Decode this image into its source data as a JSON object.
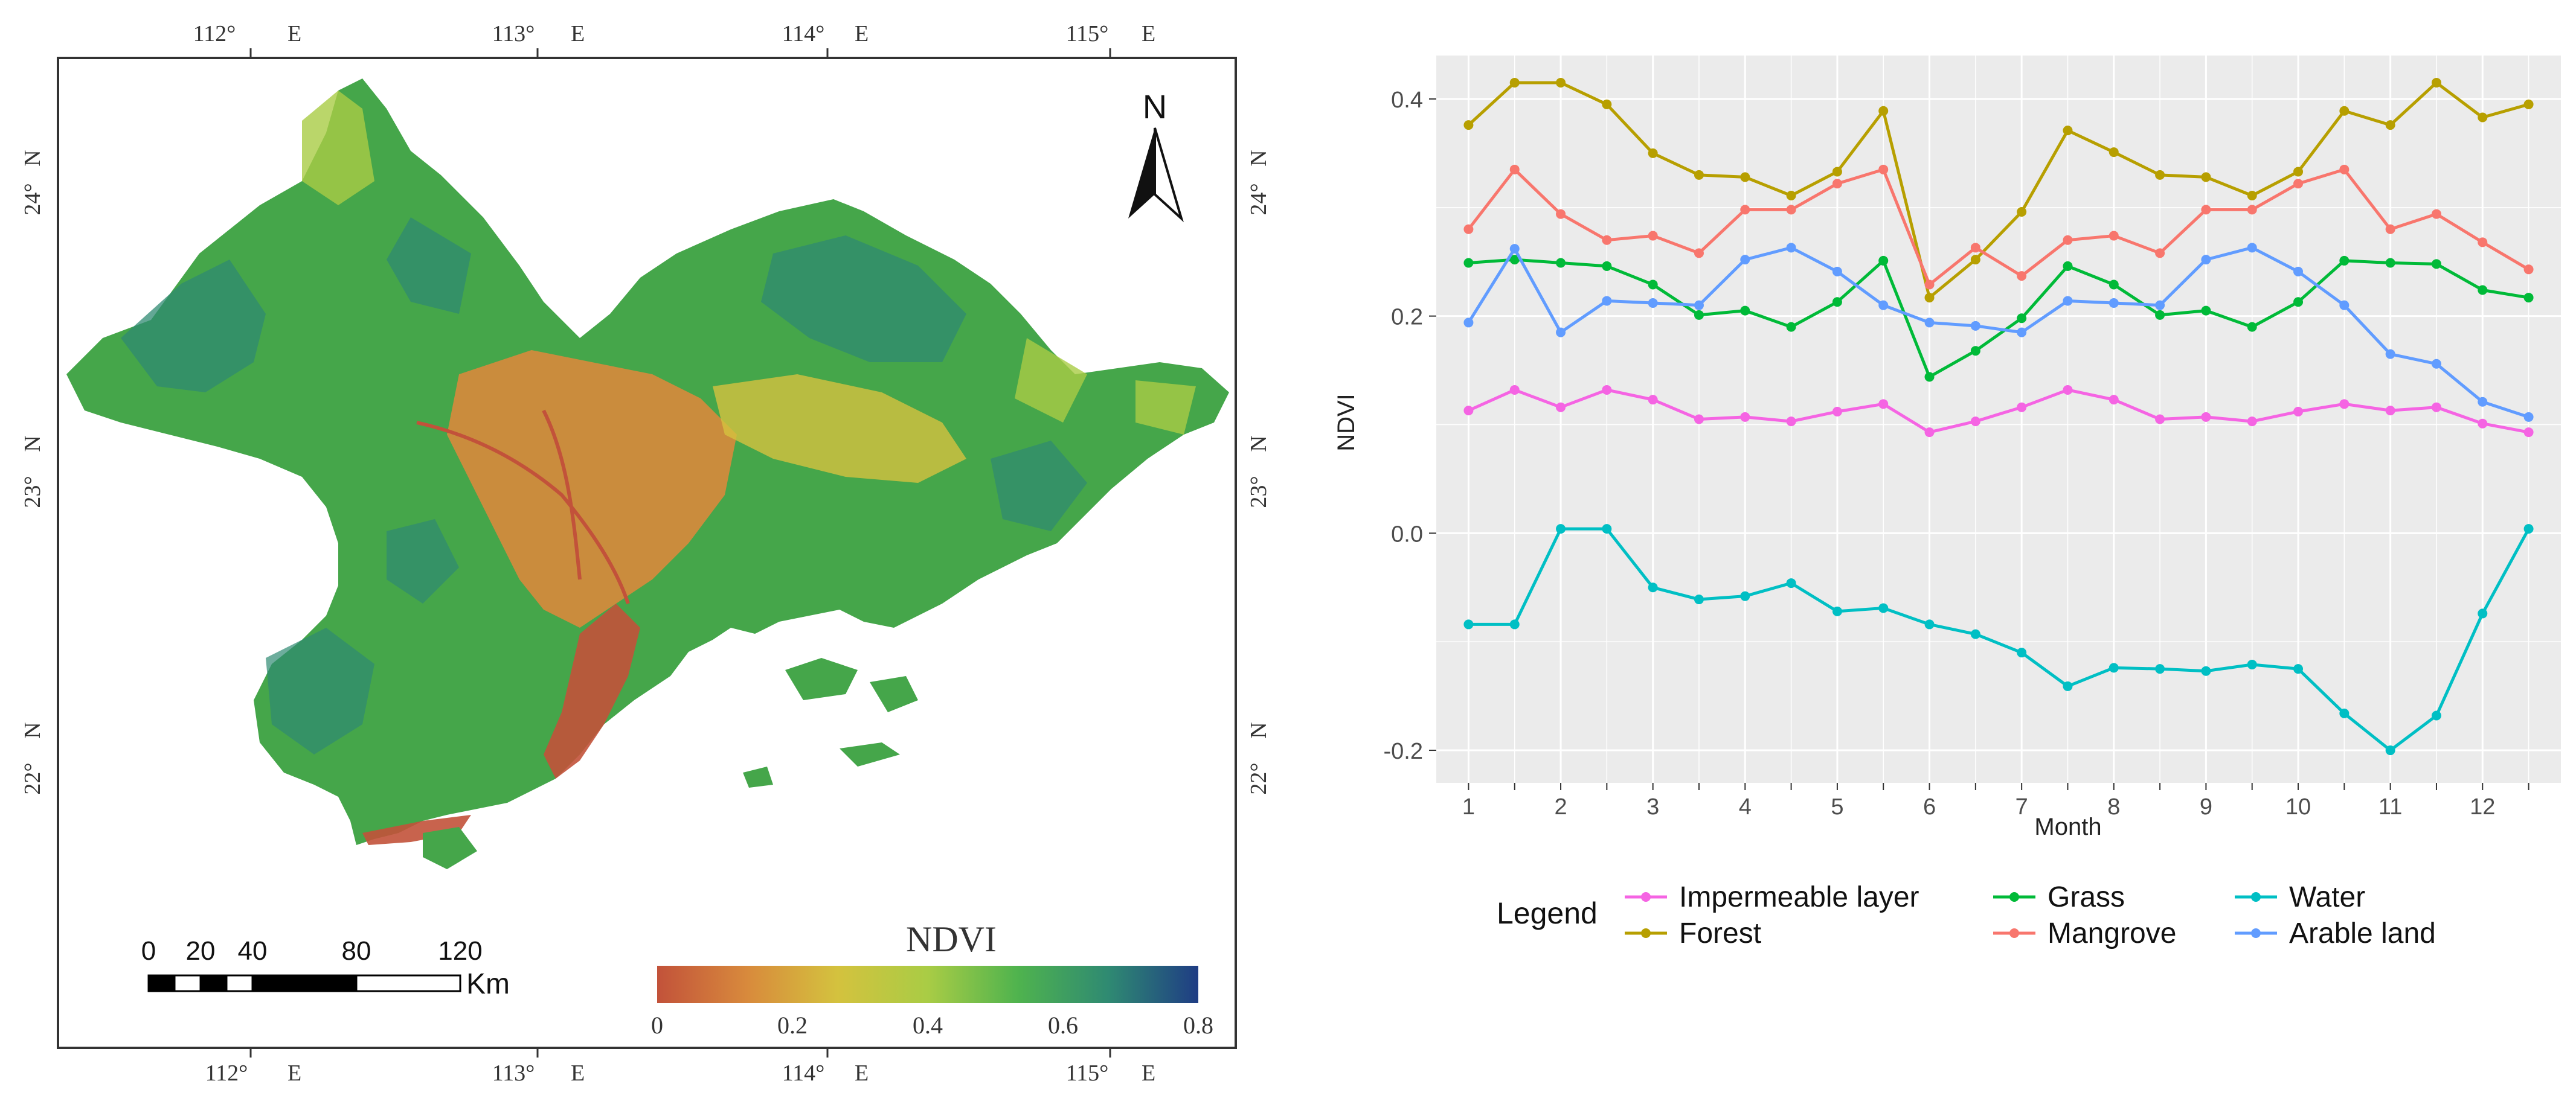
{
  "map": {
    "lon_ticks": [
      "112°",
      "113°",
      "114°",
      "115°"
    ],
    "lon_suffix": "E",
    "lat_ticks": [
      "24°",
      "23°",
      "22°"
    ],
    "lat_suffix": "N",
    "north_label": "N",
    "scalebar": {
      "ticks": [
        "0",
        "20",
        "40",
        "80",
        "120"
      ],
      "unit": "Km"
    },
    "colorbar": {
      "title": "NDVI",
      "ticks": [
        "0",
        "0.2",
        "0.4",
        "0.6",
        "0.8"
      ],
      "colors": [
        "#c2523a",
        "#d88a3c",
        "#d4c23e",
        "#a9cc45",
        "#4fb34e",
        "#2f8a72",
        "#1f3d84"
      ]
    }
  },
  "chart_data": {
    "type": "line",
    "title": "",
    "xlabel": "Month",
    "ylabel": "NDVI",
    "x": [
      1,
      1.5,
      2,
      2.5,
      3,
      3.5,
      4,
      4.5,
      5,
      5.5,
      6,
      6.5,
      7,
      7.5,
      8,
      8.5,
      9,
      9.5,
      10,
      10.5,
      11,
      11.5,
      12,
      12.5
    ],
    "xticks": [
      "1",
      "2",
      "3",
      "4",
      "5",
      "6",
      "7",
      "8",
      "9",
      "10",
      "11",
      "12"
    ],
    "yticks": [
      "-0.2",
      "0.0",
      "0.2",
      "0.4"
    ],
    "xlim": [
      0.65,
      12.85
    ],
    "ylim": [
      -0.23,
      0.44
    ],
    "legend_title": "Legend",
    "legend_position": "bottom",
    "series": [
      {
        "name": "Impermeable layer",
        "color": "#f564e3",
        "values": [
          0.113,
          0.132,
          0.116,
          0.132,
          0.123,
          0.105,
          0.107,
          0.103,
          0.112,
          0.119,
          0.093,
          0.103,
          0.116,
          0.132,
          0.123,
          0.105,
          0.107,
          0.103,
          0.112,
          0.119,
          0.113,
          0.116,
          0.101,
          0.093
        ]
      },
      {
        "name": "Forest",
        "color": "#b79f00",
        "values": [
          0.376,
          0.415,
          0.415,
          0.395,
          0.35,
          0.33,
          0.328,
          0.311,
          0.333,
          0.389,
          0.217,
          0.252,
          0.296,
          0.371,
          0.351,
          0.33,
          0.328,
          0.311,
          0.333,
          0.389,
          0.376,
          0.415,
          0.383,
          0.395
        ]
      },
      {
        "name": "Grass",
        "color": "#00ba38",
        "values": [
          0.249,
          0.252,
          0.249,
          0.246,
          0.229,
          0.201,
          0.205,
          0.19,
          0.213,
          0.251,
          0.144,
          0.168,
          0.198,
          0.246,
          0.229,
          0.201,
          0.205,
          0.19,
          0.213,
          0.251,
          0.249,
          0.248,
          0.224,
          0.217
        ]
      },
      {
        "name": "Mangrove",
        "color": "#f8766d",
        "values": [
          0.28,
          0.335,
          0.294,
          0.27,
          0.274,
          0.258,
          0.298,
          0.298,
          0.322,
          0.335,
          0.229,
          0.263,
          0.237,
          0.27,
          0.274,
          0.258,
          0.298,
          0.298,
          0.322,
          0.335,
          0.28,
          0.294,
          0.268,
          0.243
        ]
      },
      {
        "name": "Water",
        "color": "#00bfc4",
        "values": [
          -0.084,
          -0.084,
          0.004,
          0.004,
          -0.05,
          -0.061,
          -0.058,
          -0.046,
          -0.072,
          -0.069,
          -0.084,
          -0.093,
          -0.11,
          -0.141,
          -0.124,
          -0.125,
          -0.127,
          -0.121,
          -0.125,
          -0.166,
          -0.2,
          -0.168,
          -0.074,
          0.004
        ]
      },
      {
        "name": "Arable land",
        "color": "#619cff",
        "values": [
          0.194,
          0.262,
          0.185,
          0.214,
          0.212,
          0.21,
          0.252,
          0.263,
          0.241,
          0.21,
          0.194,
          0.191,
          0.185,
          0.214,
          0.212,
          0.21,
          0.252,
          0.263,
          0.241,
          0.21,
          0.165,
          0.156,
          0.121,
          0.107
        ]
      }
    ]
  }
}
